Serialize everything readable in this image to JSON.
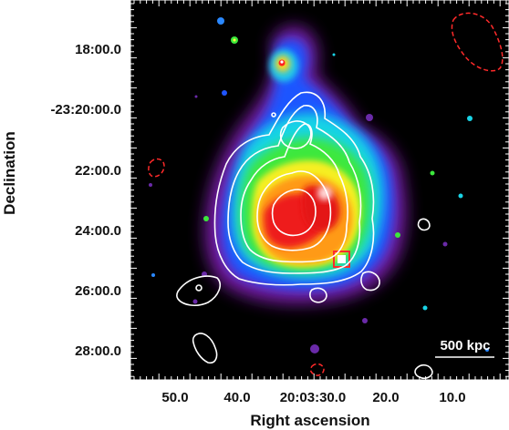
{
  "image": {
    "kind": "astronomical x-ray surface-brightness map with radio contour overlay",
    "colormap": "rainbow (black background → purple → blue → cyan → green → yellow → orange → red → white peak)",
    "contour_colors": {
      "positive": "#ffffff",
      "negative": "#ff2a2a"
    }
  },
  "axes": {
    "xlabel": "Right ascension",
    "ylabel": "Declination",
    "x_ticks": [
      "50.0",
      "40.0",
      "20:03:30.0",
      "20.0",
      "10.0"
    ],
    "y_ticks": [
      "18:00.0",
      "-23:20:00.0",
      "22:00.0",
      "24:00.0",
      "26:00.0",
      "28:00.0"
    ]
  },
  "scalebar": {
    "label": "500 kpc"
  },
  "colors": {
    "background": "#000000",
    "frame_ticks": "#ffffff",
    "label_text": "#111111"
  }
}
